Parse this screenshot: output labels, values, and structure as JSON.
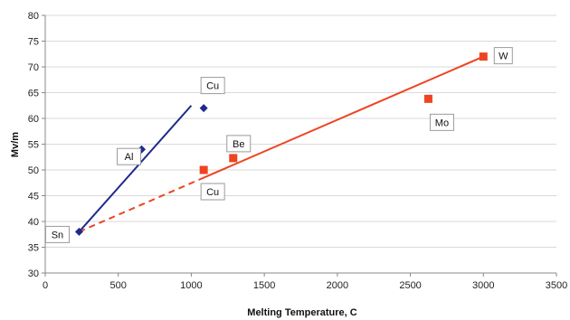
{
  "chart_data": {
    "type": "scatter",
    "xlabel": "Melting Temperature, C",
    "ylabel": "Mv/m",
    "xlim": [
      0,
      3500
    ],
    "ylim": [
      30,
      80
    ],
    "xticks": [
      0,
      500,
      1000,
      1500,
      2000,
      2500,
      3000,
      3500
    ],
    "yticks": [
      30,
      35,
      40,
      45,
      50,
      55,
      60,
      65,
      70,
      75,
      80
    ],
    "grid": "horizontal",
    "legend": "none",
    "series": [
      {
        "color": "#1f2a8c",
        "marker": "diamond",
        "points": [
          {
            "label": "Sn",
            "x": 232,
            "y": 38
          },
          {
            "label": "Al",
            "x": 660,
            "y": 54
          },
          {
            "label": "Cu",
            "x": 1085,
            "y": 62
          }
        ],
        "trend": {
          "style": "solid",
          "from": [
            232,
            38
          ],
          "to": [
            1000,
            62.5
          ]
        }
      },
      {
        "color": "#ee4422",
        "marker": "square",
        "points": [
          {
            "label": "Cu",
            "x": 1085,
            "y": 50
          },
          {
            "label": "Be",
            "x": 1287,
            "y": 52.3
          },
          {
            "label": "Mo",
            "x": 2623,
            "y": 63.8
          },
          {
            "label": "W",
            "x": 3000,
            "y": 72
          }
        ],
        "trend_dashed": {
          "style": "dashed",
          "from": [
            232,
            38
          ],
          "to": [
            1085,
            48.5
          ]
        },
        "trend": {
          "style": "solid",
          "from": [
            1085,
            48.5
          ],
          "to": [
            3000,
            72
          ]
        }
      }
    ]
  }
}
